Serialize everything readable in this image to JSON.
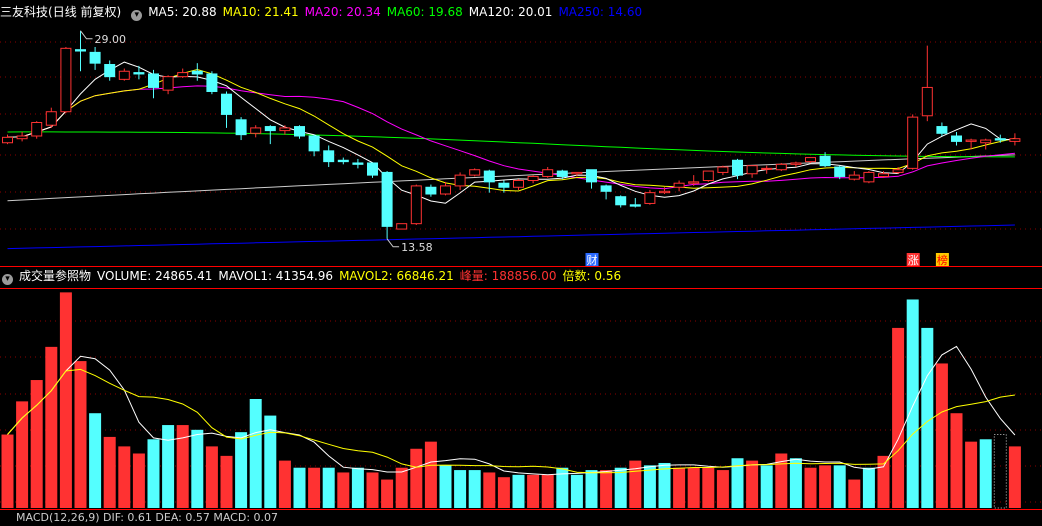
{
  "stock": {
    "name": "三友科技",
    "period": "(日线 前复权)"
  },
  "ma_legend": [
    {
      "label": "MA5:",
      "value": "20.88",
      "color": "#ffffff"
    },
    {
      "label": "MA10:",
      "value": "21.41",
      "color": "#ffff00"
    },
    {
      "label": "MA20:",
      "value": "20.34",
      "color": "#ff00ff"
    },
    {
      "label": "MA60:",
      "value": "19.68",
      "color": "#00ff00"
    },
    {
      "label": "MA120:",
      "value": "20.01",
      "color": "#ffffff"
    },
    {
      "label": "MA250:",
      "value": "14.60",
      "color": "#0000ff"
    }
  ],
  "vol_legend": {
    "title": "成交量参照物",
    "items": [
      {
        "label": "VOLUME:",
        "value": "24865.41",
        "color": "#ffffff"
      },
      {
        "label": "MAVOL1:",
        "value": "41354.96",
        "color": "#ffffff"
      },
      {
        "label": "MAVOL2:",
        "value": "66846.21",
        "color": "#ffff00"
      },
      {
        "label": "峰量:",
        "value": "188856.00",
        "color": "#ff3232"
      },
      {
        "label": "倍数:",
        "value": "0.56",
        "color": "#ffff00"
      }
    ]
  },
  "macd_legend": "MACD(12,26,9)  DIF: 0.61  DEA: 0.57  MACD: 0.07",
  "annotations": {
    "high": "29.00",
    "low": "13.58"
  },
  "markers": [
    {
      "text": "财",
      "bg": "#2a6aff",
      "color": "#ffffff"
    },
    {
      "text": "涨",
      "bg": "#ff3232",
      "color": "#ffffff"
    },
    {
      "text": "榜",
      "bg": "#ffcc00",
      "color": "#ff0000"
    }
  ],
  "colors": {
    "up": "#ff3232",
    "down": "#54ffff",
    "grid": "#8b0000",
    "separator": "#ff0000"
  },
  "chart_data": {
    "type": "candlestick",
    "candles": [
      [
        20.7,
        21.3,
        21.1,
        20.6
      ],
      [
        21.0,
        21.5,
        21.2,
        20.8
      ],
      [
        21.2,
        22.3,
        22.2,
        21.0
      ],
      [
        22.0,
        23.3,
        23.0,
        21.8
      ],
      [
        23.0,
        27.8,
        27.7,
        22.9
      ],
      [
        27.6,
        29.0,
        27.5,
        26.0
      ],
      [
        27.4,
        27.8,
        26.6,
        26.1
      ],
      [
        26.5,
        26.8,
        25.6,
        25.3
      ],
      [
        25.4,
        26.2,
        26.0,
        25.3
      ],
      [
        25.9,
        26.4,
        25.8,
        25.4
      ],
      [
        25.8,
        26.1,
        24.8,
        24.0
      ],
      [
        24.6,
        25.7,
        25.6,
        24.3
      ],
      [
        25.6,
        26.2,
        25.9,
        25.5
      ],
      [
        26.0,
        26.6,
        25.8,
        25.3
      ],
      [
        25.8,
        26.0,
        24.5,
        24.3
      ],
      [
        24.3,
        24.5,
        22.8,
        21.8
      ],
      [
        22.4,
        22.6,
        21.3,
        20.9
      ],
      [
        21.4,
        22.0,
        21.8,
        21.1
      ],
      [
        21.9,
        22.0,
        21.6,
        20.6
      ],
      [
        21.6,
        22.0,
        21.8,
        21.3
      ],
      [
        21.9,
        22.0,
        21.2,
        21.0
      ],
      [
        21.2,
        21.3,
        20.1,
        19.7
      ],
      [
        20.1,
        20.5,
        19.3,
        18.9
      ],
      [
        19.4,
        19.6,
        19.3,
        19.1
      ],
      [
        19.2,
        19.5,
        19.1,
        18.8
      ],
      [
        19.2,
        19.2,
        18.3,
        18.1
      ],
      [
        18.5,
        18.6,
        14.5,
        13.58
      ],
      [
        14.3,
        14.7,
        14.7,
        14.3
      ],
      [
        14.7,
        17.6,
        17.5,
        14.6
      ],
      [
        17.4,
        17.6,
        16.9,
        16.7
      ],
      [
        16.9,
        17.8,
        17.5,
        16.8
      ],
      [
        17.5,
        18.5,
        18.3,
        17.2
      ],
      [
        18.3,
        18.8,
        18.7,
        18.2
      ],
      [
        18.6,
        18.7,
        17.8,
        17.0
      ],
      [
        17.7,
        17.9,
        17.4,
        17.0
      ],
      [
        17.4,
        18.0,
        17.9,
        17.2
      ],
      [
        17.9,
        18.3,
        18.2,
        17.7
      ],
      [
        18.2,
        18.9,
        18.7,
        18.1
      ],
      [
        18.6,
        18.7,
        18.2,
        18.0
      ],
      [
        18.4,
        18.5,
        18.5,
        18.2
      ],
      [
        18.7,
        18.7,
        17.8,
        17.3
      ],
      [
        17.5,
        17.6,
        17.1,
        16.5
      ],
      [
        16.7,
        16.8,
        16.1,
        15.9
      ],
      [
        16.1,
        16.6,
        16.0,
        15.9
      ],
      [
        16.2,
        17.2,
        17.0,
        16.1
      ],
      [
        17.0,
        17.4,
        17.1,
        16.9
      ],
      [
        17.4,
        17.9,
        17.7,
        17.1
      ],
      [
        17.7,
        18.3,
        17.8,
        17.5
      ],
      [
        17.9,
        18.5,
        18.6,
        17.8
      ],
      [
        18.5,
        19.0,
        18.9,
        18.3
      ],
      [
        19.4,
        19.5,
        18.3,
        18.0
      ],
      [
        18.4,
        19.0,
        19.0,
        18.1
      ],
      [
        18.8,
        19.0,
        18.8,
        18.4
      ],
      [
        18.7,
        19.2,
        19.1,
        18.6
      ],
      [
        19.1,
        19.3,
        19.2,
        18.9
      ],
      [
        19.3,
        19.6,
        19.6,
        19.2
      ],
      [
        19.7,
        20.0,
        19.0,
        18.9
      ],
      [
        18.9,
        19.0,
        18.2,
        18.0
      ],
      [
        18.0,
        18.6,
        18.3,
        17.9
      ],
      [
        17.8,
        18.6,
        18.5,
        17.7
      ],
      [
        18.2,
        18.6,
        18.4,
        18.1
      ],
      [
        18.5,
        18.9,
        18.7,
        18.4
      ],
      [
        18.8,
        22.8,
        22.6,
        18.7
      ],
      [
        22.7,
        27.9,
        24.8,
        22.3
      ],
      [
        21.9,
        22.2,
        21.4,
        21.2
      ],
      [
        21.2,
        21.5,
        20.8,
        20.5
      ],
      [
        20.8,
        21.0,
        20.9,
        20.2
      ],
      [
        20.7,
        21.0,
        20.9,
        20.2
      ],
      [
        21.0,
        21.3,
        20.9,
        20.7
      ],
      [
        20.8,
        21.4,
        21.0,
        20.5
      ]
    ],
    "volume": [
      [
        31000,
        1
      ],
      [
        45000,
        1
      ],
      [
        54000,
        1
      ],
      [
        68000,
        1
      ],
      [
        91000,
        1
      ],
      [
        62000,
        1
      ],
      [
        40000,
        0
      ],
      [
        30000,
        1
      ],
      [
        26000,
        1
      ],
      [
        23000,
        1
      ],
      [
        29000,
        0
      ],
      [
        35000,
        0
      ],
      [
        35000,
        1
      ],
      [
        33000,
        0
      ],
      [
        26000,
        1
      ],
      [
        22000,
        1
      ],
      [
        32000,
        0
      ],
      [
        46000,
        0
      ],
      [
        39000,
        0
      ],
      [
        20000,
        1
      ],
      [
        17000,
        0
      ],
      [
        17000,
        1
      ],
      [
        17000,
        0
      ],
      [
        15000,
        1
      ],
      [
        17000,
        0
      ],
      [
        15000,
        1
      ],
      [
        12000,
        1
      ],
      [
        17000,
        1
      ],
      [
        25000,
        1
      ],
      [
        28000,
        1
      ],
      [
        18000,
        0
      ],
      [
        16000,
        0
      ],
      [
        16000,
        0
      ],
      [
        15000,
        1
      ],
      [
        13000,
        1
      ],
      [
        14000,
        0
      ],
      [
        14000,
        1
      ],
      [
        14000,
        1
      ],
      [
        17000,
        0
      ],
      [
        14000,
        0
      ],
      [
        16000,
        0
      ],
      [
        16000,
        1
      ],
      [
        17000,
        0
      ],
      [
        20000,
        1
      ],
      [
        18000,
        0
      ],
      [
        19000,
        0
      ],
      [
        17000,
        1
      ],
      [
        17000,
        1
      ],
      [
        17000,
        1
      ],
      [
        16000,
        1
      ],
      [
        21000,
        0
      ],
      [
        20000,
        1
      ],
      [
        18000,
        0
      ],
      [
        23000,
        1
      ],
      [
        21000,
        0
      ],
      [
        17000,
        1
      ],
      [
        18000,
        1
      ],
      [
        18000,
        0
      ],
      [
        12000,
        1
      ],
      [
        17000,
        0
      ],
      [
        22000,
        1
      ],
      [
        76000,
        1
      ],
      [
        88000,
        0
      ],
      [
        76000,
        0
      ],
      [
        61000,
        1
      ],
      [
        40000,
        1
      ],
      [
        28000,
        1
      ],
      [
        29000,
        0
      ],
      [
        31000,
        1
      ],
      [
        26000,
        1
      ]
    ],
    "ylim_price": [
      12.6,
      29.8
    ],
    "ylim_volume": [
      0,
      92000
    ]
  }
}
